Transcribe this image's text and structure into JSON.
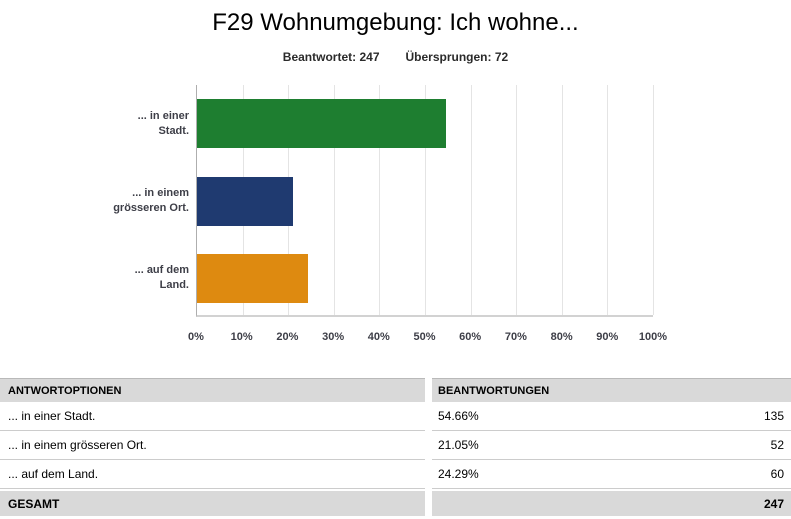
{
  "header": {
    "title": "F29 Wohnumgebung: Ich wohne...",
    "answered": "Beantwortet: 247",
    "skipped": "Übersprungen: 72"
  },
  "chart_data": {
    "type": "bar",
    "orientation": "horizontal",
    "title": "F29 Wohnumgebung: Ich wohne...",
    "categories": [
      "... in einer Stadt.",
      "... in einem grösseren Ort.",
      "... auf dem Land."
    ],
    "category_label_lines": [
      [
        "... in einer",
        "Stadt."
      ],
      [
        "... in einem",
        "grösseren Ort."
      ],
      [
        "... auf dem",
        "Land."
      ]
    ],
    "values": [
      54.66,
      21.05,
      24.29
    ],
    "bar_colors": [
      "#1e7e30",
      "#1f3a70",
      "#de8a10"
    ],
    "x_ticks": [
      "0%",
      "10%",
      "20%",
      "30%",
      "40%",
      "50%",
      "60%",
      "70%",
      "80%",
      "90%",
      "100%"
    ],
    "xlim": [
      0,
      100
    ],
    "grid": true,
    "xlabel": "",
    "ylabel": ""
  },
  "table": {
    "headers": [
      "ANTWORTOPTIONEN",
      "BEANTWORTUNGEN"
    ],
    "rows": [
      {
        "option": "... in einer Stadt.",
        "percent": "54.66%",
        "count": "135"
      },
      {
        "option": "... in einem grösseren Ort.",
        "percent": "21.05%",
        "count": "52"
      },
      {
        "option": "... auf dem Land.",
        "percent": "24.29%",
        "count": "60"
      }
    ],
    "total_label": "GESAMT",
    "total_count": "247"
  },
  "colors": {
    "table_header_bg": "#d9d9d9",
    "table_total_bg": "#d9d9d9",
    "row_divider": "#cccccc",
    "gridline": "#e4e4e4"
  }
}
